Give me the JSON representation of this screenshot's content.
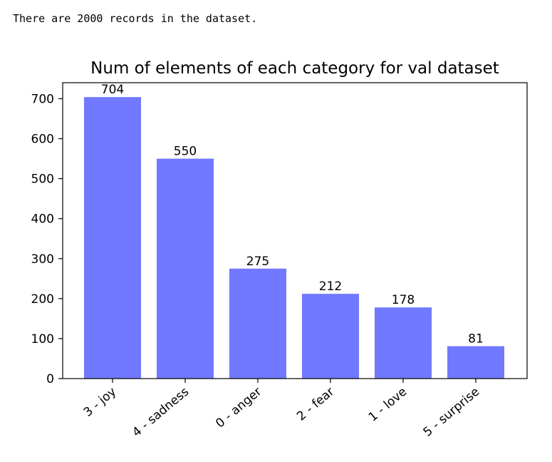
{
  "output": {
    "text": "There are 2000 records in the dataset."
  },
  "chart_data": {
    "type": "bar",
    "title": "Num of elements of each category for val dataset",
    "xlabel": "",
    "ylabel": "",
    "categories": [
      "3 - joy",
      "4 - sadness",
      "0 - anger",
      "2 - fear",
      "1 - love",
      "5 - surprise"
    ],
    "values": [
      704,
      550,
      275,
      212,
      178,
      81
    ],
    "ylim": [
      0,
      740
    ],
    "yticks": [
      0,
      100,
      200,
      300,
      400,
      500,
      600,
      700
    ],
    "data_labels": [
      "704",
      "550",
      "275",
      "212",
      "178",
      "81"
    ],
    "bar_color": "#7079ff",
    "grid": false,
    "legend": "none"
  }
}
